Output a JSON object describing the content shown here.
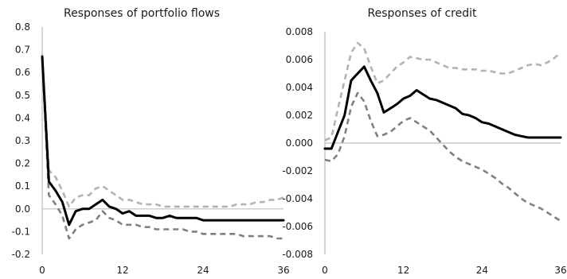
{
  "chart_data": [
    {
      "type": "line",
      "title": "Responses of portfolio flows",
      "xlabel": "",
      "ylabel": "",
      "xlim": [
        0,
        36
      ],
      "ylim": [
        -0.2,
        0.8
      ],
      "xticks": [
        "0",
        "12",
        "24",
        "36"
      ],
      "yticks": [
        "0.8",
        "0.7",
        "0.6",
        "0.5",
        "0.4",
        "0.3",
        "0.2",
        "0.1",
        "0.0",
        "-0.1",
        "-0.2"
      ],
      "grid": false,
      "legend": "none",
      "series": [
        {
          "role": "response",
          "color": "#000000",
          "style": "solid",
          "x": [
            0,
            1,
            2,
            3,
            4,
            5,
            6,
            7,
            8,
            9,
            10,
            11,
            12,
            13,
            14,
            15,
            16,
            17,
            18,
            19,
            20,
            21,
            22,
            23,
            24,
            25,
            26,
            27,
            28,
            29,
            30,
            31,
            32,
            33,
            34,
            35,
            36
          ],
          "y": [
            0.67,
            0.12,
            0.08,
            0.03,
            -0.07,
            -0.01,
            0.0,
            0.0,
            0.02,
            0.04,
            0.01,
            0.0,
            -0.02,
            -0.01,
            -0.03,
            -0.03,
            -0.03,
            -0.04,
            -0.04,
            -0.03,
            -0.04,
            -0.04,
            -0.04,
            -0.04,
            -0.05,
            -0.05,
            -0.05,
            -0.05,
            -0.05,
            -0.05,
            -0.05,
            -0.05,
            -0.05,
            -0.05,
            -0.05,
            -0.05,
            -0.05
          ]
        },
        {
          "role": "upper band",
          "color": "#b3b3b3",
          "style": "dashed",
          "x": [
            0,
            1,
            2,
            3,
            4,
            5,
            6,
            7,
            8,
            9,
            10,
            11,
            12,
            13,
            14,
            15,
            16,
            17,
            18,
            19,
            20,
            21,
            22,
            23,
            24,
            25,
            26,
            27,
            28,
            29,
            30,
            31,
            32,
            33,
            34,
            35,
            36
          ],
          "y": [
            0.68,
            0.17,
            0.14,
            0.08,
            0.01,
            0.05,
            0.06,
            0.06,
            0.09,
            0.1,
            0.08,
            0.06,
            0.04,
            0.04,
            0.03,
            0.02,
            0.02,
            0.02,
            0.01,
            0.01,
            0.01,
            0.01,
            0.01,
            0.01,
            0.01,
            0.01,
            0.01,
            0.01,
            0.01,
            0.02,
            0.02,
            0.02,
            0.03,
            0.03,
            0.04,
            0.04,
            0.05
          ]
        },
        {
          "role": "lower band",
          "color": "#808080",
          "style": "dashed",
          "x": [
            0,
            1,
            2,
            3,
            4,
            5,
            6,
            7,
            8,
            9,
            10,
            11,
            12,
            13,
            14,
            15,
            16,
            17,
            18,
            19,
            20,
            21,
            22,
            23,
            24,
            25,
            26,
            27,
            28,
            29,
            30,
            31,
            32,
            33,
            34,
            35,
            36
          ],
          "y": [
            0.66,
            0.06,
            0.02,
            -0.03,
            -0.13,
            -0.09,
            -0.07,
            -0.06,
            -0.05,
            -0.01,
            -0.04,
            -0.05,
            -0.07,
            -0.07,
            -0.07,
            -0.08,
            -0.08,
            -0.09,
            -0.09,
            -0.09,
            -0.09,
            -0.09,
            -0.1,
            -0.1,
            -0.11,
            -0.11,
            -0.11,
            -0.11,
            -0.11,
            -0.11,
            -0.12,
            -0.12,
            -0.12,
            -0.12,
            -0.12,
            -0.13,
            -0.13
          ]
        }
      ]
    },
    {
      "type": "line",
      "title": "Responses of credit",
      "xlabel": "",
      "ylabel": "",
      "xlim": [
        0,
        36
      ],
      "ylim": [
        -0.008,
        0.008
      ],
      "xticks": [
        "0",
        "12",
        "24",
        "36"
      ],
      "yticks": [
        "0.008",
        "0.006",
        "0.004",
        "0.002",
        "0.000",
        "-0.002",
        "-0.004",
        "-0.006",
        "-0.008"
      ],
      "grid": false,
      "legend": "none",
      "series": [
        {
          "role": "response",
          "color": "#000000",
          "style": "solid",
          "x": [
            0,
            1,
            2,
            3,
            4,
            5,
            6,
            7,
            8,
            9,
            10,
            11,
            12,
            13,
            14,
            15,
            16,
            17,
            18,
            19,
            20,
            21,
            22,
            23,
            24,
            25,
            26,
            27,
            28,
            29,
            30,
            31,
            32,
            33,
            34,
            35,
            36
          ],
          "y": [
            -0.0004,
            -0.0004,
            0.0008,
            0.002,
            0.0045,
            0.005,
            0.0055,
            0.0045,
            0.0036,
            0.0022,
            0.0025,
            0.0028,
            0.0032,
            0.0034,
            0.0038,
            0.0035,
            0.0032,
            0.0031,
            0.0029,
            0.0027,
            0.0025,
            0.0021,
            0.002,
            0.0018,
            0.0015,
            0.0014,
            0.0012,
            0.001,
            0.0008,
            0.0006,
            0.0005,
            0.0004,
            0.0004,
            0.0004,
            0.0004,
            0.0004,
            0.0004
          ]
        },
        {
          "role": "upper band",
          "color": "#b3b3b3",
          "style": "dashed",
          "x": [
            0,
            1,
            2,
            3,
            4,
            5,
            6,
            7,
            8,
            9,
            10,
            11,
            12,
            13,
            14,
            15,
            16,
            17,
            18,
            19,
            20,
            21,
            22,
            23,
            24,
            25,
            26,
            27,
            28,
            29,
            30,
            31,
            32,
            33,
            34,
            35,
            36
          ],
          "y": [
            0.0002,
            0.0004,
            0.0025,
            0.0045,
            0.0065,
            0.0072,
            0.0068,
            0.0055,
            0.0043,
            0.0045,
            0.005,
            0.0055,
            0.0058,
            0.0062,
            0.0061,
            0.006,
            0.006,
            0.0058,
            0.0056,
            0.0054,
            0.0054,
            0.0053,
            0.0053,
            0.0053,
            0.0052,
            0.0052,
            0.0051,
            0.005,
            0.005,
            0.0052,
            0.0054,
            0.0056,
            0.0057,
            0.0056,
            0.0058,
            0.0061,
            0.0065
          ]
        },
        {
          "role": "lower band",
          "color": "#808080",
          "style": "dashed",
          "x": [
            0,
            1,
            2,
            3,
            4,
            5,
            6,
            7,
            8,
            9,
            10,
            11,
            12,
            13,
            14,
            15,
            16,
            17,
            18,
            19,
            20,
            21,
            22,
            23,
            24,
            25,
            26,
            27,
            28,
            29,
            30,
            31,
            32,
            33,
            34,
            35,
            36
          ],
          "y": [
            -0.0012,
            -0.0013,
            -0.0008,
            0.0005,
            0.0026,
            0.0036,
            0.003,
            0.0016,
            0.0005,
            0.0006,
            0.0008,
            0.0012,
            0.0016,
            0.0018,
            0.0015,
            0.0012,
            0.0009,
            0.0004,
            -0.0001,
            -0.0006,
            -0.001,
            -0.0013,
            -0.0015,
            -0.0017,
            -0.0019,
            -0.0022,
            -0.0025,
            -0.0029,
            -0.0032,
            -0.0036,
            -0.004,
            -0.0043,
            -0.0045,
            -0.0047,
            -0.005,
            -0.0053,
            -0.0056
          ]
        }
      ]
    }
  ]
}
